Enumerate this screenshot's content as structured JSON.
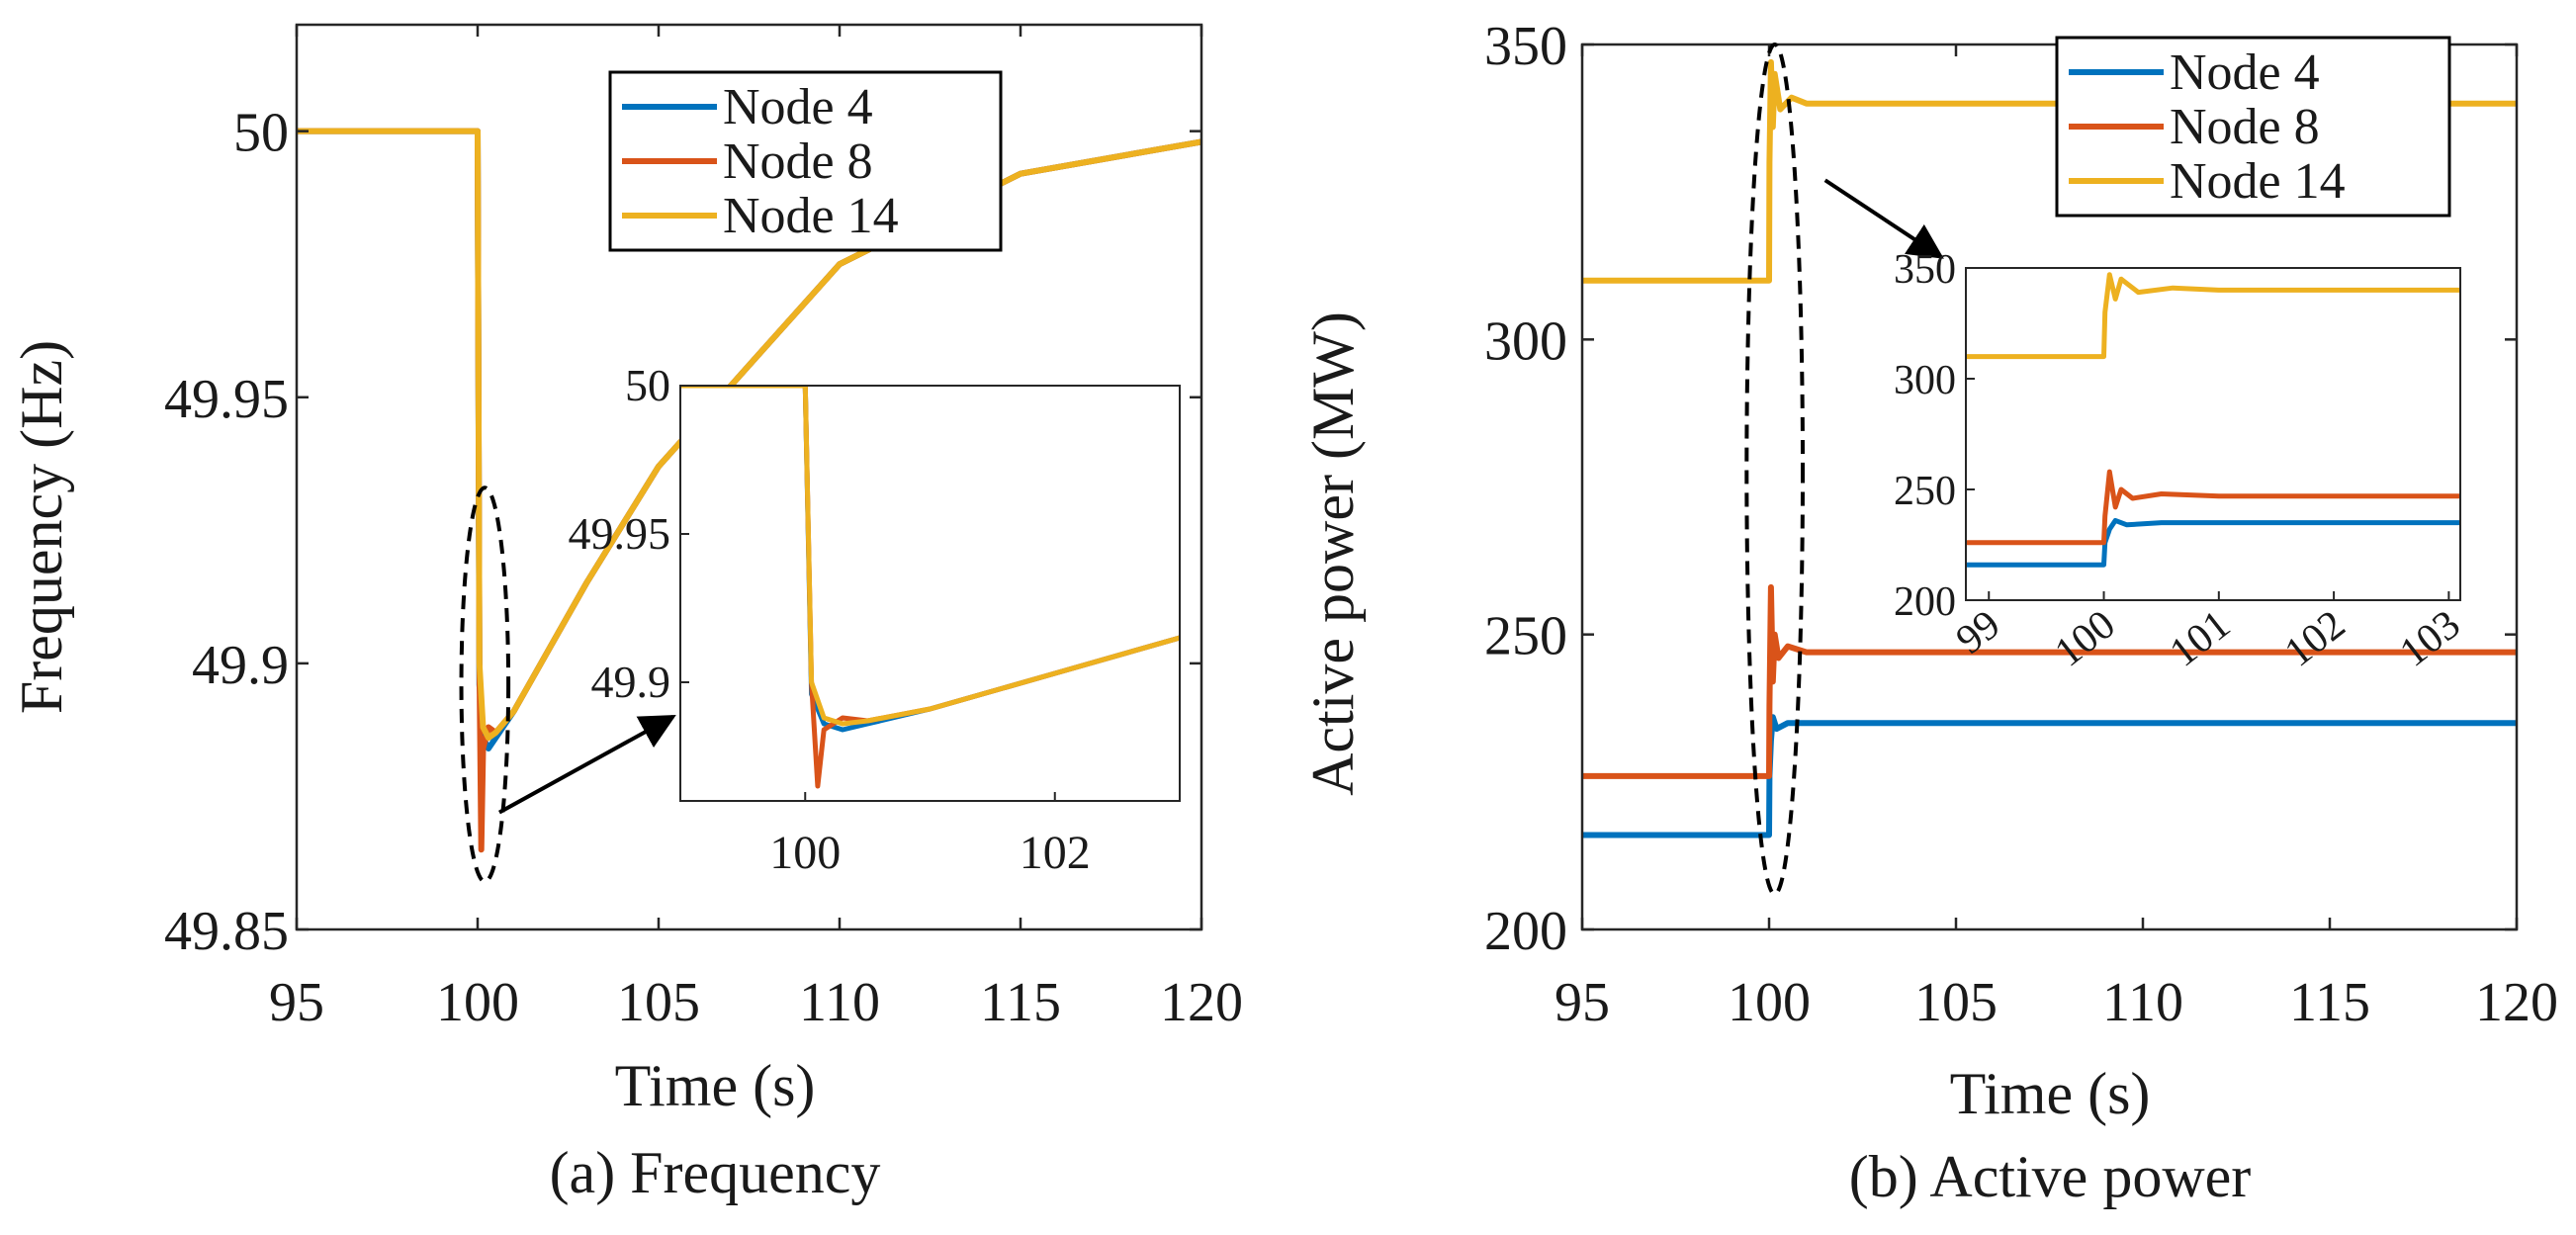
{
  "colors": {
    "node4": "#0072BD",
    "node8": "#D95319",
    "node14": "#EDB120"
  },
  "chart_data": [
    {
      "type": "line",
      "caption": "(a) Frequency",
      "xlabel": "Time (s)",
      "ylabel": "Frequency (Hz)",
      "xlim": [
        95,
        120
      ],
      "ylim": [
        49.85,
        50.02
      ],
      "xticks": [
        "95",
        "100",
        "105",
        "110",
        "115",
        "120"
      ],
      "yticks": [
        "49.85",
        "49.9",
        "49.95",
        "50"
      ],
      "legend": [
        "Node 4",
        "Node 8",
        "Node 14"
      ],
      "legend_position": "top-right",
      "series": [
        {
          "name": "Node 4",
          "x": [
            95,
            100,
            100.05,
            100.15,
            100.3,
            100.5,
            101,
            102,
            103,
            105,
            110,
            115,
            120
          ],
          "y": [
            50,
            50,
            49.896,
            49.886,
            49.884,
            49.886,
            49.891,
            49.903,
            49.915,
            49.937,
            49.975,
            49.992,
            49.998
          ]
        },
        {
          "name": "Node 8",
          "x": [
            95,
            100,
            100.05,
            100.1,
            100.15,
            100.3,
            100.5,
            101,
            102,
            103,
            105,
            110,
            115,
            120
          ],
          "y": [
            50,
            50,
            49.9,
            49.865,
            49.884,
            49.888,
            49.887,
            49.891,
            49.903,
            49.915,
            49.937,
            49.975,
            49.992,
            49.998
          ]
        },
        {
          "name": "Node 14",
          "x": [
            95,
            100,
            100.05,
            100.15,
            100.3,
            100.5,
            101,
            102,
            103,
            105,
            110,
            115,
            120
          ],
          "y": [
            50,
            50,
            49.9,
            49.888,
            49.886,
            49.887,
            49.891,
            49.903,
            49.915,
            49.937,
            49.975,
            49.992,
            49.998
          ]
        }
      ],
      "annotation": {
        "ellipse_center": [
          100.2,
          49.896
        ],
        "ellipse_radii": [
          0.65,
          0.037
        ],
        "arrow_from": [
          100.6,
          49.872
        ],
        "arrow_to": [
          105.4,
          49.89
        ]
      },
      "inset": {
        "xlim": [
          99,
          103
        ],
        "ylim": [
          49.86,
          50
        ],
        "xticks": [
          "100",
          "102"
        ],
        "yticks": [
          "49.9",
          "49.95",
          "50"
        ]
      }
    },
    {
      "type": "line",
      "caption": "(b) Active power",
      "xlabel": "Time (s)",
      "ylabel": "Active power (MW)",
      "xlim": [
        95,
        120
      ],
      "ylim": [
        200,
        350
      ],
      "xticks": [
        "95",
        "100",
        "105",
        "110",
        "115",
        "120"
      ],
      "yticks": [
        "200",
        "250",
        "300",
        "350"
      ],
      "legend": [
        "Node 4",
        "Node 8",
        "Node 14"
      ],
      "legend_position": "top-right",
      "series": [
        {
          "name": "Node 4",
          "x": [
            95,
            100,
            100.01,
            100.05,
            100.1,
            100.2,
            100.5,
            101,
            120
          ],
          "y": [
            216,
            216,
            226,
            232,
            236,
            234,
            235,
            235,
            235
          ]
        },
        {
          "name": "Node 8",
          "x": [
            95,
            100,
            100.01,
            100.05,
            100.1,
            100.15,
            100.25,
            100.5,
            101,
            120
          ],
          "y": [
            226,
            226,
            238,
            258,
            242,
            250,
            246,
            248,
            247,
            247
          ]
        },
        {
          "name": "Node 14",
          "x": [
            95,
            100,
            100.01,
            100.05,
            100.1,
            100.15,
            100.3,
            100.6,
            101,
            120
          ],
          "y": [
            310,
            310,
            330,
            347,
            336,
            345,
            339,
            341,
            340,
            340
          ]
        }
      ],
      "annotation": {
        "ellipse_center": [
          100.15,
          278
        ],
        "ellipse_radii": [
          0.75,
          72
        ],
        "arrow_from": [
          101.5,
          327
        ],
        "arrow_to": [
          104.6,
          314
        ]
      },
      "inset": {
        "xlim": [
          98.8,
          103.1
        ],
        "ylim": [
          200,
          350
        ],
        "xticks": [
          "99",
          "100",
          "101",
          "102",
          "103"
        ],
        "yticks": [
          "200",
          "250",
          "300",
          "350"
        ]
      }
    }
  ]
}
